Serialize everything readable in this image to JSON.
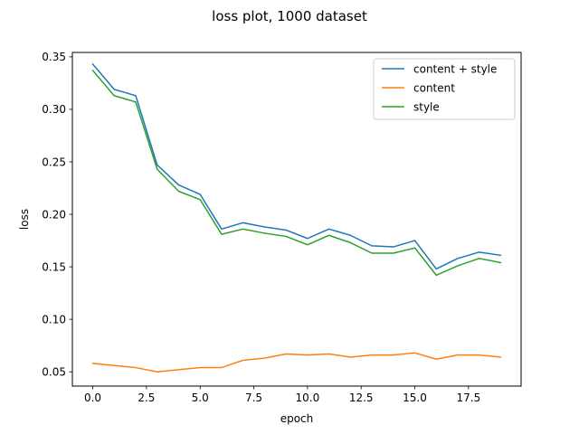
{
  "chart_data": {
    "type": "line",
    "title": "loss plot, 1000 dataset",
    "xlabel": "epoch",
    "ylabel": "loss",
    "xlim": [
      -0.95,
      19.95
    ],
    "ylim": [
      0.0364,
      0.3542
    ],
    "xticks": [
      0.0,
      2.5,
      5.0,
      7.5,
      10.0,
      12.5,
      15.0,
      17.5
    ],
    "xtick_labels": [
      "0.0",
      "2.5",
      "5.0",
      "7.5",
      "10.0",
      "12.5",
      "15.0",
      "17.5"
    ],
    "yticks": [
      0.05,
      0.1,
      0.15,
      0.2,
      0.25,
      0.3,
      0.35
    ],
    "ytick_labels": [
      "0.05",
      "0.10",
      "0.15",
      "0.20",
      "0.25",
      "0.30",
      "0.35"
    ],
    "grid": false,
    "legend_position": "top-right",
    "x": [
      0,
      1,
      2,
      3,
      4,
      5,
      6,
      7,
      8,
      9,
      10,
      11,
      12,
      13,
      14,
      15,
      16,
      17,
      18,
      19
    ],
    "series": [
      {
        "name": "content + style",
        "color": "#1f77b4",
        "values": [
          0.343,
          0.319,
          0.313,
          0.247,
          0.228,
          0.219,
          0.186,
          0.192,
          0.188,
          0.185,
          0.177,
          0.186,
          0.18,
          0.17,
          0.169,
          0.175,
          0.148,
          0.158,
          0.164,
          0.161
        ]
      },
      {
        "name": "content",
        "color": "#ff7f0e",
        "values": [
          0.058,
          0.056,
          0.054,
          0.05,
          0.052,
          0.054,
          0.054,
          0.061,
          0.063,
          0.067,
          0.066,
          0.067,
          0.064,
          0.066,
          0.066,
          0.068,
          0.062,
          0.066,
          0.066,
          0.064
        ]
      },
      {
        "name": "style",
        "color": "#2ca02c",
        "values": [
          0.337,
          0.313,
          0.307,
          0.243,
          0.222,
          0.214,
          0.181,
          0.186,
          0.182,
          0.179,
          0.171,
          0.18,
          0.173,
          0.163,
          0.163,
          0.168,
          0.142,
          0.151,
          0.158,
          0.154
        ]
      }
    ]
  }
}
